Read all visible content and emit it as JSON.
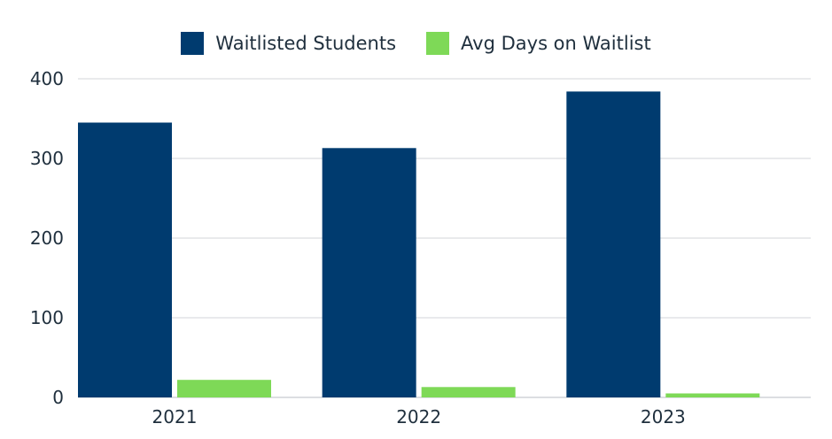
{
  "chart_data": {
    "type": "bar",
    "categories": [
      "2021",
      "2022",
      "2023"
    ],
    "series": [
      {
        "name": "Waitlisted Students",
        "color": "#003b6f",
        "values": [
          345,
          313,
          384
        ]
      },
      {
        "name": "Avg Days on Waitlist",
        "color": "#7ed957",
        "values": [
          22,
          13,
          5
        ]
      }
    ],
    "ylim": [
      0,
      400
    ],
    "yticks": [
      0,
      100,
      200,
      300,
      400
    ],
    "grid": true,
    "legend": "top-center",
    "title": "",
    "xlabel": "",
    "ylabel": ""
  }
}
